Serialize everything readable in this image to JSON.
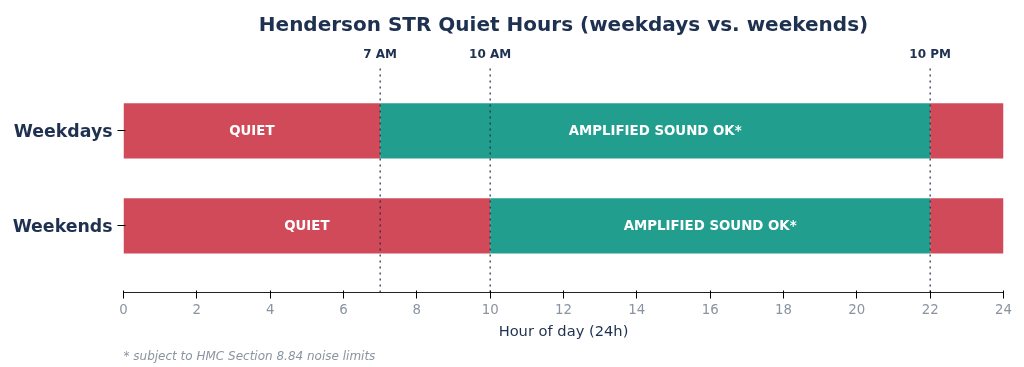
{
  "chart_data": {
    "type": "bar",
    "orientation": "horizontal",
    "stacked": true,
    "title": "Henderson STR Quiet Hours (weekdays vs. weekends)",
    "xlabel": "Hour of day (24h)",
    "categories": [
      "Weekdays",
      "Weekends"
    ],
    "series": [
      {
        "color": "#d04a5a",
        "values": [
          7,
          10
        ],
        "value_labels": [
          "QUIET",
          "QUIET"
        ]
      },
      {
        "color": "#229e8f",
        "values": [
          15,
          12
        ],
        "value_labels": [
          "AMPLIFIED SOUND OK*",
          "AMPLIFIED SOUND OK*"
        ]
      },
      {
        "color": "#d04a5a",
        "values": [
          2,
          2
        ]
      }
    ],
    "xlim": [
      0,
      24
    ],
    "xticks": [
      0,
      2,
      4,
      6,
      8,
      10,
      12,
      14,
      16,
      18,
      20,
      22,
      24
    ],
    "grid": false,
    "ref_lines": [
      {
        "axis": "x",
        "value": 7,
        "label": "7 AM",
        "line_style": "dotted",
        "color": "#1f2a3c"
      },
      {
        "axis": "x",
        "value": 10,
        "label": "10 AM",
        "line_style": "dotted",
        "color": "#1f2a3c"
      },
      {
        "axis": "x",
        "value": 22,
        "label": "10 PM",
        "line_style": "dotted",
        "color": "#1f2a3c"
      }
    ],
    "annotations": [
      "* subject to HMC Section 8.84 noise limits"
    ]
  }
}
